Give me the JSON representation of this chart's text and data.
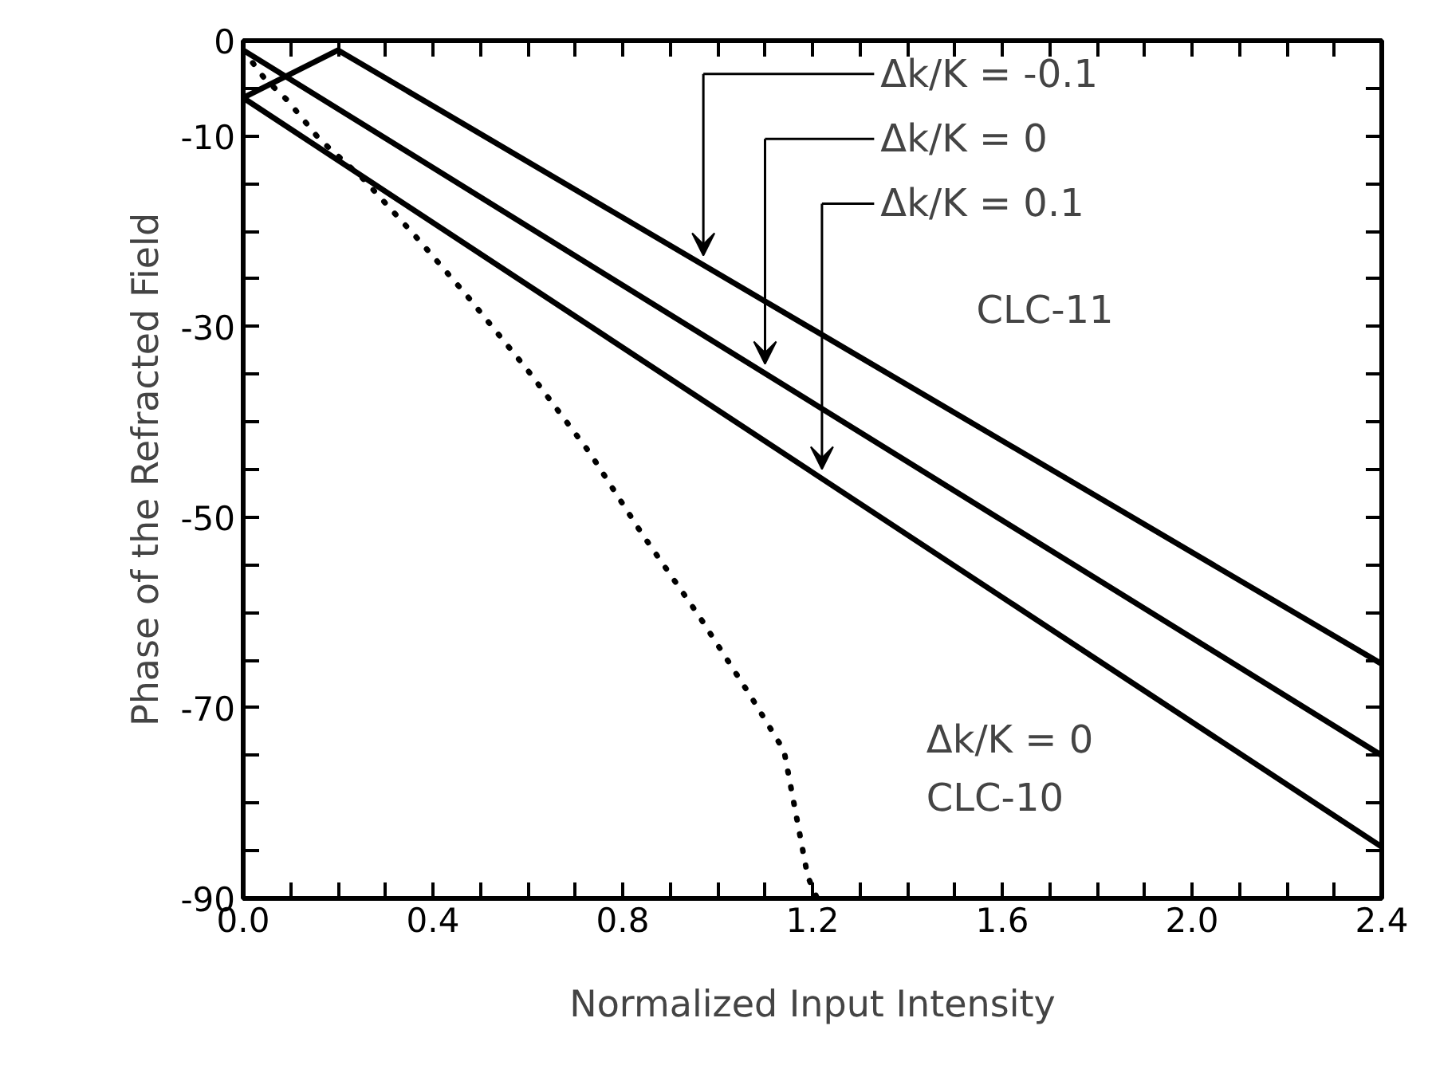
{
  "chart_data": {
    "type": "line",
    "xlabel": "Normalized Input Intensity",
    "ylabel": "Phase of the Refracted Field",
    "xlim": [
      0,
      2.4
    ],
    "ylim": [
      -90,
      0
    ],
    "xticks": [
      {
        "value": 0,
        "label": "0.0"
      },
      {
        "value": 0.1,
        "label": null
      },
      {
        "value": 0.2,
        "label": null
      },
      {
        "value": 0.3,
        "label": null
      },
      0.4,
      {
        "value": 0.5,
        "label": null
      },
      {
        "value": 0.6,
        "label": null
      },
      {
        "value": 0.7,
        "label": null
      },
      0.8,
      {
        "value": 0.9,
        "label": null
      },
      {
        "value": 1.0,
        "label": null
      },
      {
        "value": 1.1,
        "label": null
      },
      1.2,
      {
        "value": 1.3,
        "label": null
      },
      {
        "value": 1.4,
        "label": null
      },
      {
        "value": 1.5,
        "label": null
      },
      1.6,
      {
        "value": 1.7,
        "label": null
      },
      {
        "value": 1.8,
        "label": null
      },
      {
        "value": 1.9,
        "label": null
      },
      {
        "value": 2,
        "label": "2.0"
      },
      {
        "value": 2.1,
        "label": null
      },
      {
        "value": 2.2,
        "label": null
      },
      {
        "value": 2.3,
        "label": null
      },
      2.4
    ],
    "yticks": [
      0,
      {
        "value": -5,
        "label": null
      },
      -10,
      {
        "value": -15,
        "label": null
      },
      {
        "value": -20,
        "label": null
      },
      {
        "value": -25,
        "label": null
      },
      -30,
      {
        "value": -35,
        "label": null
      },
      {
        "value": -40,
        "label": null
      },
      {
        "value": -45,
        "label": null
      },
      -50,
      {
        "value": -55,
        "label": null
      },
      {
        "value": -60,
        "label": null
      },
      {
        "value": -65,
        "label": null
      },
      -70,
      {
        "value": -75,
        "label": null
      },
      {
        "value": -80,
        "label": null
      },
      {
        "value": -85,
        "label": null
      },
      -90
    ],
    "grid": false,
    "series": [
      {
        "color": "#000000",
        "line_style": "solid",
        "x": [
          0,
          0.2,
          2.4
        ],
        "values": [
          -6,
          -1,
          -65.4
        ]
      },
      {
        "color": "#000000",
        "line_style": "solid",
        "x": [
          0,
          2.4
        ],
        "values": [
          -1,
          -75
        ]
      },
      {
        "color": "#000000",
        "line_style": "solid",
        "x": [
          0,
          2.4
        ],
        "values": [
          -6,
          -84.6
        ]
      },
      {
        "color": "#000000",
        "line_style": "dotted",
        "x": [
          0,
          0.044,
          0.094,
          0.16,
          0.255,
          0.37,
          0.474,
          0.6,
          0.73,
          0.84,
          0.96,
          1.07,
          1.14,
          1.19,
          1.21
        ],
        "values": [
          -1,
          -3.9,
          -6.3,
          -10.3,
          -14.6,
          -20.9,
          -26.9,
          -34.6,
          -43.2,
          -51.7,
          -60.3,
          -68.8,
          -74.5,
          -87.7,
          -90
        ]
      }
    ],
    "annotations": [
      "Δk/K = -0.1",
      "Δk/K = 0",
      "Δk/K = 0.1",
      "CLC-11",
      "Δk/K = 0\nCLC-10"
    ]
  }
}
